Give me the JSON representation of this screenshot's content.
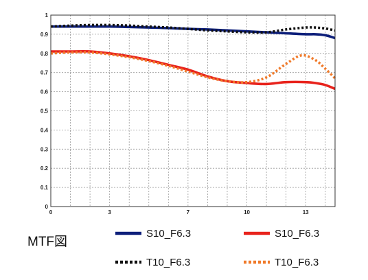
{
  "caption": "MTF図",
  "chart_data": {
    "type": "line",
    "title": "",
    "xlabel": "",
    "ylabel": "",
    "xlim": [
      0,
      14.5
    ],
    "ylim": [
      0,
      1
    ],
    "grid": true,
    "legend_position": "bottom",
    "x_ticks": [
      {
        "value": 0,
        "label": "0"
      },
      {
        "value": 3,
        "label": "3"
      },
      {
        "value": 7,
        "label": "7"
      },
      {
        "value": 10,
        "label": "10"
      },
      {
        "value": 13,
        "label": "13"
      }
    ],
    "x_grid": [
      0,
      1,
      2,
      3,
      4,
      5,
      6,
      7,
      8,
      9,
      10,
      11,
      12,
      13,
      14
    ],
    "y_ticks": [
      {
        "value": 0,
        "label": "0"
      },
      {
        "value": 0.1,
        "label": "0.1"
      },
      {
        "value": 0.2,
        "label": "0.2"
      },
      {
        "value": 0.3,
        "label": "0.3"
      },
      {
        "value": 0.4,
        "label": "0.4"
      },
      {
        "value": 0.5,
        "label": "0.5"
      },
      {
        "value": 0.6,
        "label": "0.6"
      },
      {
        "value": 0.7,
        "label": "0.7"
      },
      {
        "value": 0.8,
        "label": "0.8"
      },
      {
        "value": 0.9,
        "label": "0.9"
      },
      {
        "value": 1,
        "label": "1"
      }
    ],
    "series": [
      {
        "name": "S10_F6.3",
        "color": "#0d1f7a",
        "dash": "solid",
        "x": [
          0,
          1,
          2,
          3,
          4,
          5,
          6,
          7,
          8,
          9,
          10,
          11,
          12,
          13,
          13.5,
          14,
          14.5
        ],
        "y": [
          0.94,
          0.94,
          0.94,
          0.94,
          0.938,
          0.935,
          0.932,
          0.928,
          0.925,
          0.92,
          0.915,
          0.91,
          0.905,
          0.9,
          0.9,
          0.895,
          0.88
        ]
      },
      {
        "name": "T10_F6.3",
        "color": "#111111",
        "dash": "dotted",
        "x": [
          0,
          1,
          2,
          3,
          4,
          5,
          6,
          7,
          8,
          9,
          10,
          11,
          12,
          13,
          13.5,
          14,
          14.5
        ],
        "y": [
          0.94,
          0.945,
          0.948,
          0.948,
          0.945,
          0.94,
          0.935,
          0.928,
          0.92,
          0.915,
          0.91,
          0.91,
          0.925,
          0.935,
          0.935,
          0.93,
          0.92
        ]
      },
      {
        "name": "S10_F6.3",
        "color": "#e8231c",
        "dash": "solid",
        "x": [
          0,
          1,
          2,
          3,
          4,
          5,
          6,
          7,
          8,
          9,
          10,
          11,
          12,
          13,
          13.5,
          14,
          14.5
        ],
        "y": [
          0.81,
          0.81,
          0.81,
          0.8,
          0.785,
          0.765,
          0.74,
          0.715,
          0.68,
          0.655,
          0.645,
          0.64,
          0.65,
          0.65,
          0.645,
          0.635,
          0.615
        ]
      },
      {
        "name": "T10_F6.3",
        "color": "#f07a2a",
        "dash": "dotted",
        "x": [
          0,
          1,
          2,
          3,
          4,
          5,
          6,
          7,
          8,
          9,
          10,
          11,
          12,
          12.8,
          13.5,
          14,
          14.5
        ],
        "y": [
          0.8,
          0.805,
          0.805,
          0.795,
          0.78,
          0.76,
          0.735,
          0.705,
          0.675,
          0.655,
          0.65,
          0.675,
          0.745,
          0.79,
          0.765,
          0.72,
          0.67
        ]
      }
    ]
  }
}
